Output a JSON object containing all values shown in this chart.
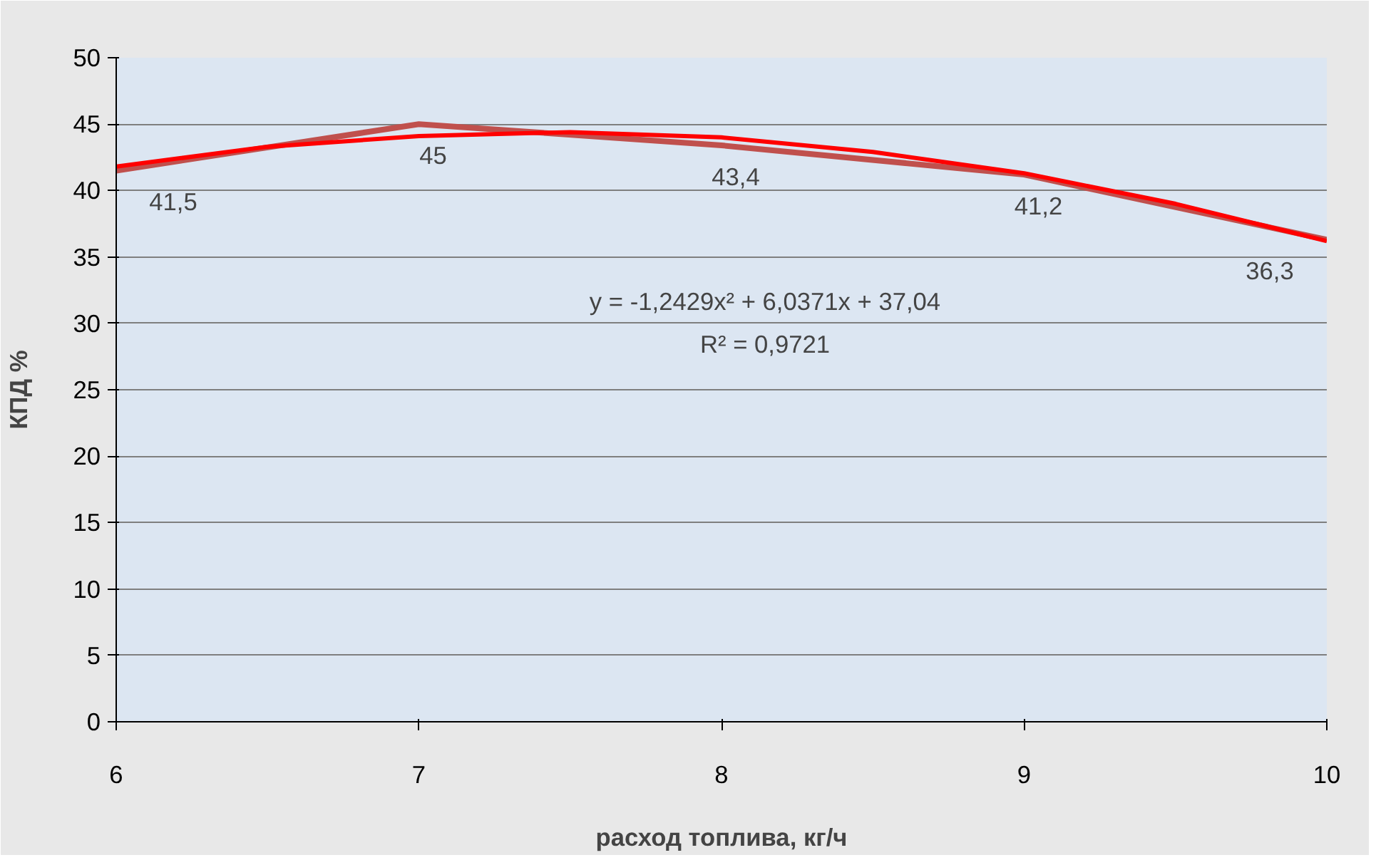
{
  "chart_data": {
    "type": "line",
    "xlabel": "расход топлива, кг/ч",
    "ylabel": "КПД %",
    "x": [
      6,
      7,
      8,
      9,
      10
    ],
    "series": [
      {
        "color": "#c0504d",
        "values": [
          41.5,
          45,
          43.4,
          41.2,
          36.3
        ],
        "value_labels": [
          "41,5",
          "45",
          "43,4",
          "41,2",
          "36,3"
        ]
      },
      {
        "type": "line",
        "color": "#ff0000",
        "x": [
          6,
          6.5,
          7,
          7.5,
          8,
          8.5,
          9,
          9.5,
          10
        ],
        "values": [
          41.8,
          43.3,
          44.1,
          44.4,
          44.0,
          42.9,
          41.3,
          39.0,
          36.2
        ]
      }
    ],
    "annotations": [
      "y = -1,2429x² + 6,0371x + 37,04",
      "R² = 0,9721"
    ],
    "xlim": [
      6,
      10
    ],
    "xticks": [
      6,
      7,
      8,
      9,
      10
    ],
    "ylim": [
      0,
      50
    ],
    "yticks": [
      0,
      5,
      10,
      15,
      20,
      25,
      30,
      35,
      40,
      45,
      50
    ],
    "grid": "y",
    "marker": "none",
    "line_style": "solid"
  }
}
